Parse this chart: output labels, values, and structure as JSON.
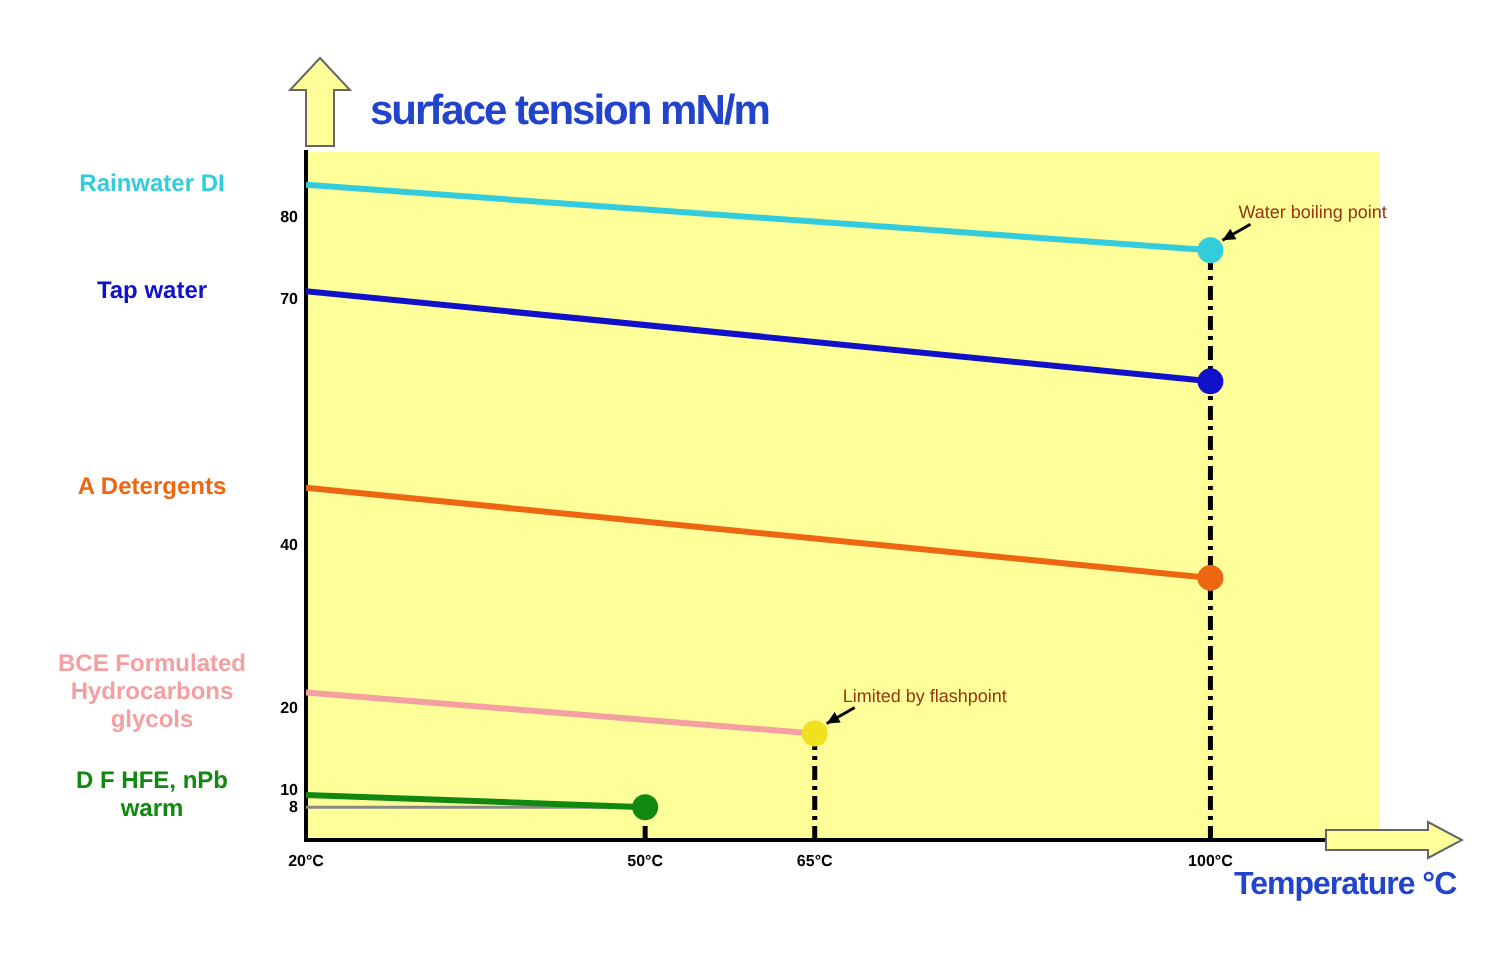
{
  "chart_data": {
    "type": "line",
    "ylabel": "surface tension mN/m",
    "xlabel": "Temperature °C",
    "xlim": [
      20,
      115
    ],
    "xticks": [
      {
        "value": 20,
        "label": "20°C"
      },
      {
        "value": 50,
        "label": "50°C"
      },
      {
        "value": 65,
        "label": "65°C"
      },
      {
        "value": 100,
        "label": "100°C"
      }
    ],
    "ylim": [
      4,
      88
    ],
    "yticks": [
      8,
      10,
      20,
      40,
      70,
      80
    ],
    "grid": false,
    "legend": false,
    "marker": "circle",
    "series": [
      {
        "name": "Rainwater DI",
        "color": "#33ccdd",
        "x": [
          20,
          100
        ],
        "values": [
          84,
          76
        ]
      },
      {
        "name": "Tap water",
        "color": "#1111cc",
        "x": [
          20,
          100
        ],
        "values": [
          71,
          60
        ]
      },
      {
        "name": "A Detergents",
        "color": "#ee6611",
        "x": [
          20,
          100
        ],
        "values": [
          47,
          36
        ]
      },
      {
        "name": "BCE Formulated Hydrocarbons glycols",
        "color": "#f4a0a0",
        "colors": [
          "#f4a0a0",
          "#f0e020"
        ],
        "x": [
          20,
          65
        ],
        "values": [
          22,
          17
        ]
      },
      {
        "name": "D F  HFE, nPb warm",
        "color": "#118811",
        "x": [
          20,
          50
        ],
        "values": [
          9.5,
          8
        ]
      },
      {
        "color": "#888888",
        "x": [
          20,
          50
        ],
        "values": [
          8,
          8
        ],
        "marker": "none"
      },
      {
        "color": "#000000",
        "x": [
          50,
          50
        ],
        "values": [
          4,
          8
        ],
        "marker": "none",
        "line_style": "dashed"
      },
      {
        "color": "#000000",
        "x": [
          65,
          65
        ],
        "values": [
          4,
          17
        ],
        "marker": "none",
        "line_style": "dashed"
      },
      {
        "color": "#000000",
        "x": [
          100,
          100
        ],
        "values": [
          4,
          76
        ],
        "marker": "none",
        "line_style": "dashed"
      }
    ],
    "annotations": [
      {
        "text": "Water boiling point",
        "x": 100,
        "y": 76
      },
      {
        "text": "Limited by flashpoint",
        "x": 65,
        "y": 17
      }
    ]
  }
}
